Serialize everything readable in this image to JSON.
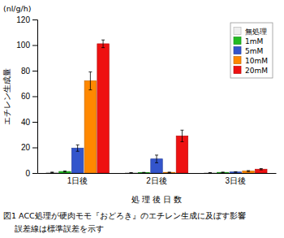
{
  "chart_data": {
    "type": "bar",
    "categories": [
      "1日後",
      "2日後",
      "3日後"
    ],
    "series": [
      {
        "name": "無処理",
        "color": "#eeeeee",
        "values": [
          0.5,
          0.2,
          0.2
        ],
        "errors": [
          0.2,
          0.1,
          0.1
        ]
      },
      {
        "name": "1mM",
        "color": "#22bb22",
        "values": [
          1.2,
          0.3,
          0.5
        ],
        "errors": [
          0.4,
          0.2,
          0.2
        ]
      },
      {
        "name": "5mM",
        "color": "#3355cc",
        "values": [
          19.5,
          11.0,
          0.8
        ],
        "errors": [
          2.5,
          3.0,
          0.2
        ]
      },
      {
        "name": "10mM",
        "color": "#ff8800",
        "values": [
          72.0,
          0.5,
          1.5
        ],
        "errors": [
          7.0,
          0.2,
          0.4
        ]
      },
      {
        "name": "20mM",
        "color": "#ee1111",
        "values": [
          101.0,
          29.0,
          3.0
        ],
        "errors": [
          3.0,
          4.5,
          0.5
        ]
      }
    ],
    "xlabel": "処 理 後 日 数",
    "ylabel": "エチレン生成量",
    "annotations": [
      "(nl/g/h)",
      "図1  ACC処理が硬肉モモ『おどろき』のエチレン生成に及ぼす影響",
      "誤差線は標準誤差を示す"
    ],
    "ylim": [
      0,
      120
    ],
    "yticks": [
      0,
      20,
      40,
      60,
      80,
      100,
      120
    ],
    "grid": false,
    "legend": "upper right"
  }
}
